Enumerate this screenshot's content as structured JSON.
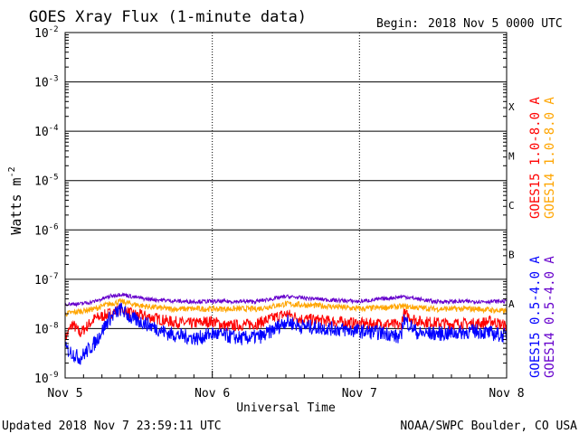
{
  "header": {
    "title": "GOES Xray Flux (1-minute data)",
    "begin_label": "Begin:",
    "begin_value": "2018 Nov 5 0000 UTC"
  },
  "footer": {
    "updated": "Updated 2018 Nov  7 23:59:11 UTC",
    "source": "NOAA/SWPC Boulder, CO USA"
  },
  "chart_data": {
    "type": "line",
    "title": "GOES Xray Flux (1-minute data)",
    "xlabel": "Universal Time",
    "ylabel": "Watts m",
    "ylabel_superscript": "-2",
    "yscale": "log",
    "ylim_exponents": [
      -9,
      -2
    ],
    "y_ticks": [
      {
        "base": "10",
        "exp": "-2",
        "value": 0.01
      },
      {
        "base": "10",
        "exp": "-3",
        "value": 0.001
      },
      {
        "base": "10",
        "exp": "-4",
        "value": 0.0001
      },
      {
        "base": "10",
        "exp": "-5",
        "value": 1e-05
      },
      {
        "base": "10",
        "exp": "-6",
        "value": 1e-06
      },
      {
        "base": "10",
        "exp": "-7",
        "value": 1e-07
      },
      {
        "base": "10",
        "exp": "-8",
        "value": 1e-08
      },
      {
        "base": "10",
        "exp": "-9",
        "value": 1e-09
      }
    ],
    "xlim_days": [
      0,
      3
    ],
    "x_ticks": [
      {
        "label": "Nov 5",
        "day": 0
      },
      {
        "label": "Nov 6",
        "day": 1
      },
      {
        "label": "Nov 7",
        "day": 2
      },
      {
        "label": "Nov 8",
        "day": 3
      }
    ],
    "flare_classes": [
      {
        "label": "A",
        "exp": -7.5
      },
      {
        "label": "B",
        "exp": -6.5
      },
      {
        "label": "C",
        "exp": -5.5
      },
      {
        "label": "M",
        "exp": -4.5
      },
      {
        "label": "X",
        "exp": -3.5
      }
    ],
    "series": [
      {
        "name": "GOES15 1.0-8.0 A",
        "color": "#ff0000",
        "noise": 0.12,
        "points": [
          [
            0,
            -8.2
          ],
          [
            0.05,
            -7.9
          ],
          [
            0.1,
            -8.1
          ],
          [
            0.2,
            -7.8
          ],
          [
            0.3,
            -7.7
          ],
          [
            0.38,
            -7.6
          ],
          [
            0.45,
            -7.7
          ],
          [
            0.55,
            -7.75
          ],
          [
            0.7,
            -7.85
          ],
          [
            0.85,
            -7.9
          ],
          [
            1.0,
            -7.85
          ],
          [
            1.1,
            -7.95
          ],
          [
            1.3,
            -7.9
          ],
          [
            1.5,
            -7.7
          ],
          [
            1.6,
            -7.8
          ],
          [
            1.8,
            -7.85
          ],
          [
            2.0,
            -7.9
          ],
          [
            2.2,
            -7.9
          ],
          [
            2.28,
            -7.95
          ],
          [
            2.3,
            -7.7
          ],
          [
            2.4,
            -7.85
          ],
          [
            2.6,
            -7.9
          ],
          [
            2.8,
            -7.9
          ],
          [
            2.9,
            -7.85
          ],
          [
            3.0,
            -7.95
          ]
        ]
      },
      {
        "name": "GOES14 1.0-8.0 A",
        "color": "#ffa500",
        "noise": 0.06,
        "points": [
          [
            0,
            -7.7
          ],
          [
            0.1,
            -7.65
          ],
          [
            0.2,
            -7.6
          ],
          [
            0.3,
            -7.5
          ],
          [
            0.38,
            -7.45
          ],
          [
            0.45,
            -7.5
          ],
          [
            0.55,
            -7.55
          ],
          [
            0.7,
            -7.6
          ],
          [
            1.0,
            -7.6
          ],
          [
            1.3,
            -7.6
          ],
          [
            1.5,
            -7.5
          ],
          [
            1.8,
            -7.55
          ],
          [
            2.0,
            -7.6
          ],
          [
            2.3,
            -7.55
          ],
          [
            2.5,
            -7.6
          ],
          [
            2.8,
            -7.6
          ],
          [
            3.0,
            -7.65
          ]
        ]
      },
      {
        "name": "GOES15 0.5-4.0 A",
        "color": "#0000ff",
        "noise": 0.15,
        "points": [
          [
            0,
            -8.4
          ],
          [
            0.1,
            -8.6
          ],
          [
            0.2,
            -8.3
          ],
          [
            0.3,
            -7.8
          ],
          [
            0.38,
            -7.6
          ],
          [
            0.45,
            -7.8
          ],
          [
            0.55,
            -7.9
          ],
          [
            0.7,
            -8.1
          ],
          [
            0.9,
            -8.2
          ],
          [
            1.0,
            -8.1
          ],
          [
            1.2,
            -8.2
          ],
          [
            1.35,
            -8.15
          ],
          [
            1.5,
            -7.85
          ],
          [
            1.6,
            -7.95
          ],
          [
            1.8,
            -8.0
          ],
          [
            2.0,
            -8.05
          ],
          [
            2.2,
            -8.1
          ],
          [
            2.28,
            -8.2
          ],
          [
            2.3,
            -7.8
          ],
          [
            2.4,
            -8.1
          ],
          [
            2.6,
            -8.1
          ],
          [
            2.8,
            -8.05
          ],
          [
            3.0,
            -8.15
          ]
        ]
      },
      {
        "name": "GOES14 0.5-4.0 A",
        "color": "#6600cc",
        "noise": 0.04,
        "points": [
          [
            0,
            -7.5
          ],
          [
            0.1,
            -7.5
          ],
          [
            0.2,
            -7.45
          ],
          [
            0.3,
            -7.35
          ],
          [
            0.38,
            -7.3
          ],
          [
            0.45,
            -7.35
          ],
          [
            0.55,
            -7.4
          ],
          [
            0.8,
            -7.45
          ],
          [
            1.0,
            -7.45
          ],
          [
            1.3,
            -7.45
          ],
          [
            1.5,
            -7.35
          ],
          [
            1.8,
            -7.42
          ],
          [
            2.0,
            -7.45
          ],
          [
            2.3,
            -7.35
          ],
          [
            2.5,
            -7.45
          ],
          [
            2.8,
            -7.45
          ],
          [
            3.0,
            -7.45
          ]
        ]
      }
    ]
  }
}
